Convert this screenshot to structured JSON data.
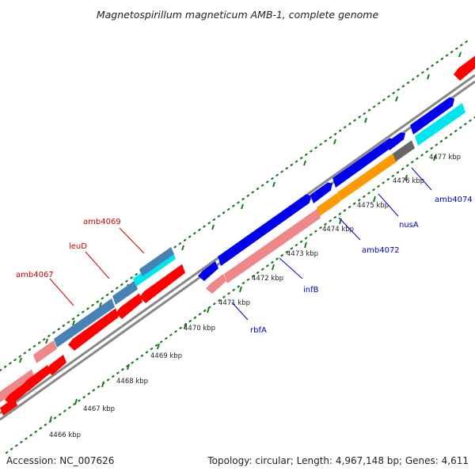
{
  "header": {
    "title": "Magnetospirillum magneticum AMB-1, complete genome"
  },
  "footer": {
    "accession": "Accession: NC_007626",
    "summary": "Topology: circular; Length: 4,967,148 bp; Genes: 4,611"
  },
  "map": {
    "track_color": "#888888",
    "tick_color": "#1f7a1f",
    "dot_color": "#1f7a1f",
    "ticks": [
      "4466 kbp",
      "4467 kbp",
      "4468 kbp",
      "4469 kbp",
      "4470 kbp",
      "4471 kbp",
      "4472 kbp",
      "4473 kbp",
      "4474 kbp",
      "4475 kbp",
      "4476 kbp",
      "4477 kbp"
    ],
    "gene_labels": [
      {
        "text": "amb4067",
        "color": "#cc0000"
      },
      {
        "text": "leuD",
        "color": "#cc0000"
      },
      {
        "text": "amb4069",
        "color": "#cc0000"
      },
      {
        "text": "rbfA",
        "color": "#0000cc"
      },
      {
        "text": "infB",
        "color": "#0000cc"
      },
      {
        "text": "amb4072",
        "color": "#0000cc"
      },
      {
        "text": "nusA",
        "color": "#0000cc"
      },
      {
        "text": "amb4074",
        "color": "#0000cc"
      }
    ],
    "colors": {
      "red": "#ff0000",
      "pink": "#ee8888",
      "steel": "#4682b4",
      "cyan": "#00e5ee",
      "blue": "#0000ee",
      "orange": "#ff9900",
      "gray": "#666666"
    }
  }
}
